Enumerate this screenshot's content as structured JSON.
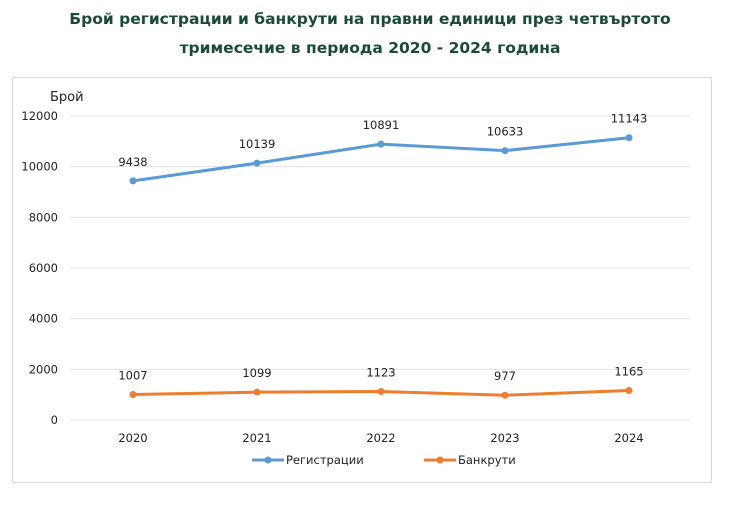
{
  "chart_data": {
    "type": "line",
    "title_line1": "Брой регистрации и банкрути на правни единици през четвъртото",
    "title_line2": "тримесечие в периода 2020 - 2024 година",
    "ylabel": "Брой",
    "xlabel": "",
    "categories": [
      "2020",
      "2021",
      "2022",
      "2023",
      "2024"
    ],
    "ylim": [
      0,
      12000
    ],
    "yticks": [
      0,
      2000,
      4000,
      6000,
      8000,
      10000,
      12000
    ],
    "grid": true,
    "legend_position": "bottom",
    "series": [
      {
        "name": "Регистрации",
        "values": [
          9438,
          10139,
          10891,
          10633,
          11143
        ],
        "color": "#5b9bd5"
      },
      {
        "name": "Банкрути",
        "values": [
          1007,
          1099,
          1123,
          977,
          1165
        ],
        "color": "#ed7d31"
      }
    ]
  }
}
